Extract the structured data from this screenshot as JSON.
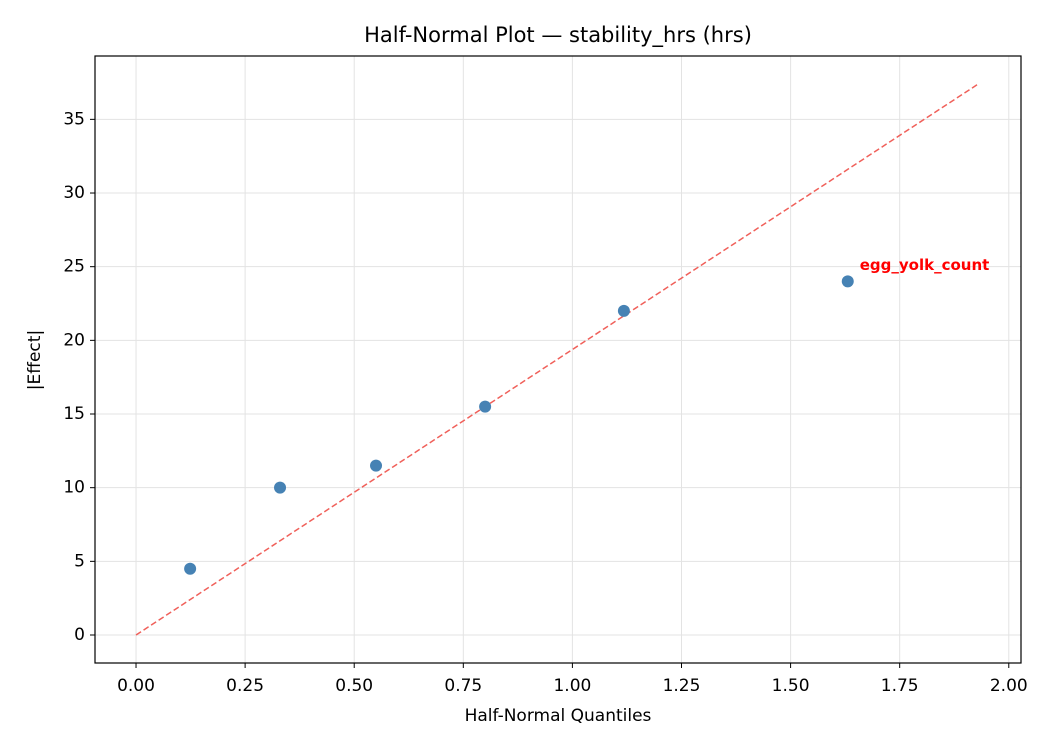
{
  "chart_data": {
    "type": "scatter",
    "title": "Half-Normal Plot — stability_hrs (hrs)",
    "x_label": "Half-Normal Quantiles",
    "y_label": "|Effect|",
    "series": [
      {
        "color": "#4682b4",
        "x": [
          0.124,
          0.33,
          0.55,
          0.8,
          1.118,
          1.631
        ],
        "values": [
          4.5,
          10,
          11.5,
          15.5,
          22,
          24
        ]
      }
    ],
    "reference_line": {
      "x": [
        0,
        1.93
      ],
      "values": [
        0,
        37.4
      ],
      "color": "#f0605a",
      "style": "dashed"
    },
    "annotation": {
      "text": "egg_yolk_count",
      "color": "#ff0000"
    },
    "xlim": [
      -0.094,
      2.028
    ],
    "ylim": [
      -1.9,
      39.3
    ],
    "xticks": [
      {
        "value": 0,
        "label": "0.00"
      },
      {
        "value": 0.25,
        "label": "0.25"
      },
      {
        "value": 0.5,
        "label": "0.50"
      },
      {
        "value": 0.75,
        "label": "0.75"
      },
      {
        "value": 1,
        "label": "1.00"
      },
      {
        "value": 1.25,
        "label": "1.25"
      },
      {
        "value": 1.5,
        "label": "1.50"
      },
      {
        "value": 1.75,
        "label": "1.75"
      },
      {
        "value": 2,
        "label": "2.00"
      }
    ],
    "yticks": [
      0,
      5,
      10,
      15,
      20,
      25,
      30,
      35
    ],
    "grid": true
  }
}
